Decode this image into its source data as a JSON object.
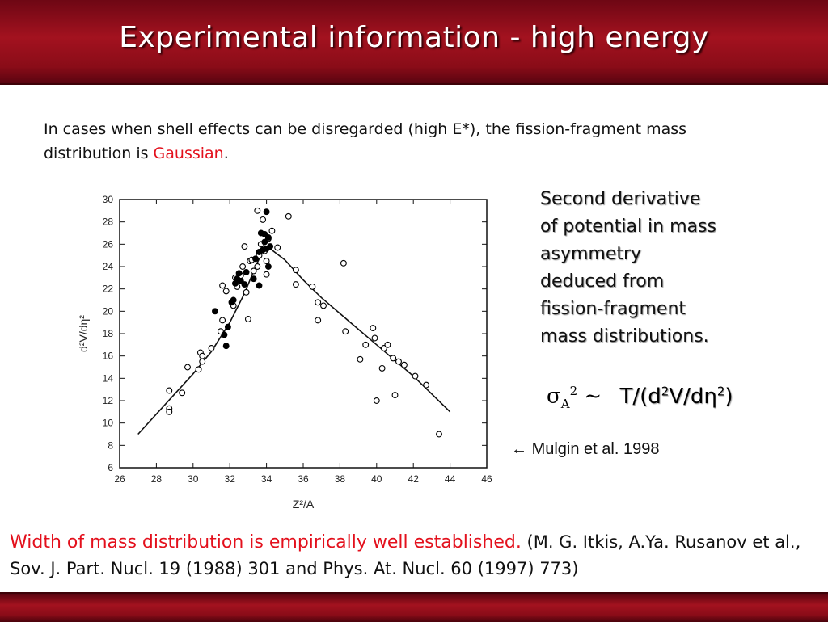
{
  "slide": {
    "title": "Experimental information - high energy",
    "intro_text": "In cases when shell effects can be disregarded (high E*), the fission-fragment mass distribution is ",
    "intro_highlight": "Gaussian",
    "intro_end": ".",
    "side_note": [
      "Second derivative",
      "of potential in mass",
      "asymmetry",
      "deduced from",
      "fission-fragment",
      "mass distributions."
    ],
    "formula_lhs_sigma": "σ",
    "formula_lhs_sub": "A",
    "formula_lhs_sup": "2",
    "formula_tilde": "~",
    "formula_rhs_pre": "T/(d",
    "formula_rhs_sup1": "2",
    "formula_rhs_mid": "V/dη",
    "formula_rhs_sup2": "2",
    "formula_rhs_post": ")",
    "reference_arrow": "←",
    "reference": "Mulgin et al. 1998",
    "footer_highlight": "Width of mass distribution is empirically well established.",
    "footer_citation": " (M. G. Itkis, A.Ya. Rusanov et al., Sov. J. Part. Nucl. 19 (1988) 301 and Phys. At. Nucl. 60 (1997) 773)"
  },
  "colors": {
    "banner": "#a3121f",
    "highlight": "#e3101c"
  },
  "chart_data": {
    "type": "scatter",
    "xlabel": "Z²/A",
    "ylabel": "d²V/dη²",
    "xlim": [
      26,
      46
    ],
    "ylim": [
      6,
      30
    ],
    "x_ticks": [
      26,
      28,
      30,
      32,
      34,
      36,
      38,
      40,
      42,
      44,
      46
    ],
    "y_ticks": [
      6,
      8,
      10,
      12,
      14,
      16,
      18,
      20,
      22,
      24,
      26,
      28,
      30
    ],
    "grid": false,
    "series": [
      {
        "marker": "open-circle",
        "points": [
          [
            28.7,
            12.9
          ],
          [
            28.7,
            11.3
          ],
          [
            28.7,
            11.0
          ],
          [
            29.4,
            12.7
          ],
          [
            29.7,
            15.0
          ],
          [
            30.3,
            14.8
          ],
          [
            30.4,
            16.3
          ],
          [
            30.5,
            16.0
          ],
          [
            30.5,
            15.5
          ],
          [
            31.0,
            16.7
          ],
          [
            31.5,
            18.2
          ],
          [
            31.6,
            19.2
          ],
          [
            31.6,
            22.3
          ],
          [
            31.8,
            21.8
          ],
          [
            32.2,
            20.5
          ],
          [
            32.3,
            23.0
          ],
          [
            32.4,
            22.2
          ],
          [
            32.6,
            23.2
          ],
          [
            32.7,
            24.0
          ],
          [
            32.8,
            25.8
          ],
          [
            32.9,
            21.7
          ],
          [
            33.0,
            19.3
          ],
          [
            33.1,
            24.5
          ],
          [
            33.2,
            24.6
          ],
          [
            33.3,
            23.6
          ],
          [
            33.5,
            24.0
          ],
          [
            33.5,
            29.0
          ],
          [
            33.6,
            25.0
          ],
          [
            33.7,
            26.0
          ],
          [
            33.8,
            28.2
          ],
          [
            33.9,
            25.4
          ],
          [
            34.0,
            24.5
          ],
          [
            34.0,
            23.3
          ],
          [
            34.1,
            26.5
          ],
          [
            34.3,
            27.2
          ],
          [
            34.6,
            25.7
          ],
          [
            35.2,
            28.5
          ],
          [
            35.6,
            23.7
          ],
          [
            35.6,
            22.4
          ],
          [
            36.5,
            22.2
          ],
          [
            36.8,
            20.8
          ],
          [
            36.8,
            19.2
          ],
          [
            37.1,
            20.5
          ],
          [
            38.2,
            24.3
          ],
          [
            38.3,
            18.2
          ],
          [
            39.1,
            15.7
          ],
          [
            39.4,
            17.0
          ],
          [
            39.8,
            18.5
          ],
          [
            39.9,
            17.6
          ],
          [
            40.0,
            12.0
          ],
          [
            40.3,
            14.9
          ],
          [
            40.4,
            16.7
          ],
          [
            40.6,
            17.0
          ],
          [
            40.9,
            15.8
          ],
          [
            41.0,
            12.5
          ],
          [
            41.2,
            15.5
          ],
          [
            41.5,
            15.2
          ],
          [
            42.1,
            14.2
          ],
          [
            42.7,
            13.4
          ],
          [
            43.4,
            9.0
          ]
        ]
      },
      {
        "marker": "filled-circle",
        "points": [
          [
            31.2,
            20.0
          ],
          [
            31.7,
            17.9
          ],
          [
            31.8,
            16.9
          ],
          [
            31.9,
            18.6
          ],
          [
            32.1,
            20.8
          ],
          [
            32.2,
            21.0
          ],
          [
            32.3,
            22.5
          ],
          [
            32.4,
            22.9
          ],
          [
            32.5,
            23.4
          ],
          [
            32.6,
            22.7
          ],
          [
            32.8,
            22.4
          ],
          [
            32.9,
            23.5
          ],
          [
            33.3,
            22.9
          ],
          [
            33.4,
            24.7
          ],
          [
            33.6,
            25.3
          ],
          [
            33.6,
            22.3
          ],
          [
            33.7,
            27.0
          ],
          [
            33.8,
            25.5
          ],
          [
            33.9,
            26.9
          ],
          [
            33.9,
            26.2
          ],
          [
            34.0,
            25.6
          ],
          [
            34.0,
            28.9
          ],
          [
            34.1,
            26.6
          ],
          [
            34.1,
            24.0
          ],
          [
            34.2,
            25.8
          ]
        ]
      },
      {
        "marker": "line",
        "points": [
          [
            27.0,
            9.0
          ],
          [
            28.0,
            10.8
          ],
          [
            29.0,
            12.6
          ],
          [
            30.0,
            14.4
          ],
          [
            31.0,
            16.4
          ],
          [
            32.0,
            19.0
          ],
          [
            32.8,
            21.6
          ],
          [
            33.4,
            24.0
          ],
          [
            33.8,
            25.4
          ],
          [
            34.2,
            25.6
          ],
          [
            35.0,
            24.6
          ],
          [
            36.0,
            22.8
          ],
          [
            37.0,
            21.2
          ],
          [
            38.0,
            19.8
          ],
          [
            39.0,
            18.4
          ],
          [
            40.0,
            17.0
          ],
          [
            41.0,
            15.6
          ],
          [
            42.0,
            14.2
          ],
          [
            43.0,
            12.6
          ],
          [
            44.0,
            11.0
          ]
        ]
      }
    ]
  }
}
